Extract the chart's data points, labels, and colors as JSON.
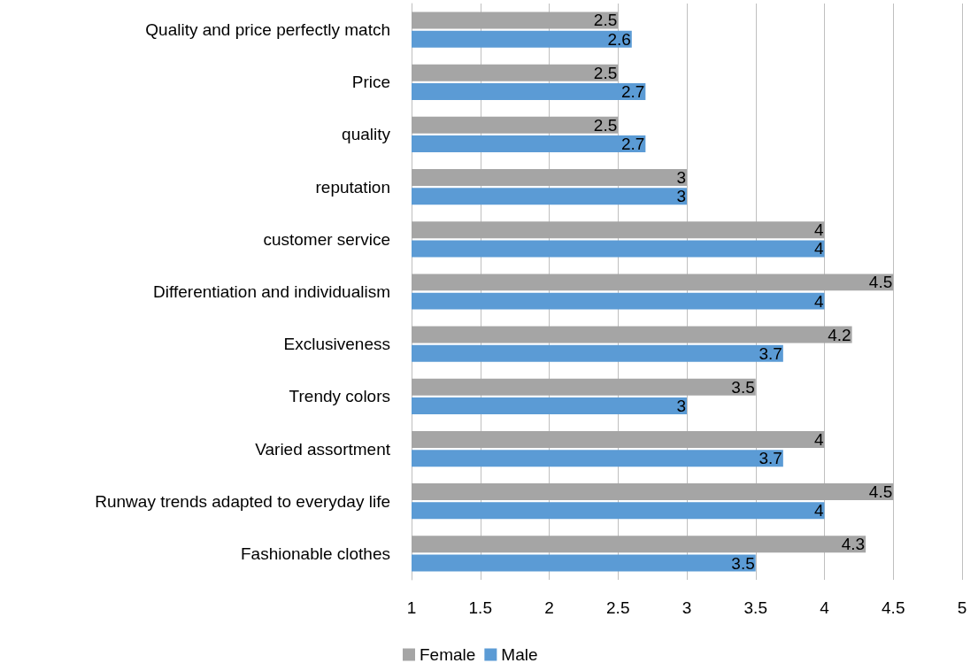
{
  "chart_data": {
    "type": "bar",
    "orientation": "horizontal",
    "categories": [
      "Quality and price perfectly match",
      "Price",
      "quality",
      "reputation",
      "customer service",
      "Differentiation and individualism",
      "Exclusiveness",
      "Trendy colors",
      "Varied assortment",
      "Runway trends adapted to everyday life",
      "Fashionable clothes"
    ],
    "series": [
      {
        "name": "Female",
        "color": "#a5a5a5",
        "values": [
          2.5,
          2.5,
          2.5,
          3,
          4,
          4.5,
          4.2,
          3.5,
          4,
          4.5,
          4.3
        ]
      },
      {
        "name": "Male",
        "color": "#5b9bd5",
        "values": [
          2.6,
          2.7,
          2.7,
          3,
          4,
          4,
          3.7,
          3,
          3.7,
          4,
          3.5
        ]
      }
    ],
    "xlim": [
      1,
      5
    ],
    "xticks": [
      1,
      1.5,
      2,
      2.5,
      3,
      3.5,
      4,
      4.5,
      5
    ],
    "grid": "x",
    "legend": "bottom",
    "data_labels": true
  }
}
